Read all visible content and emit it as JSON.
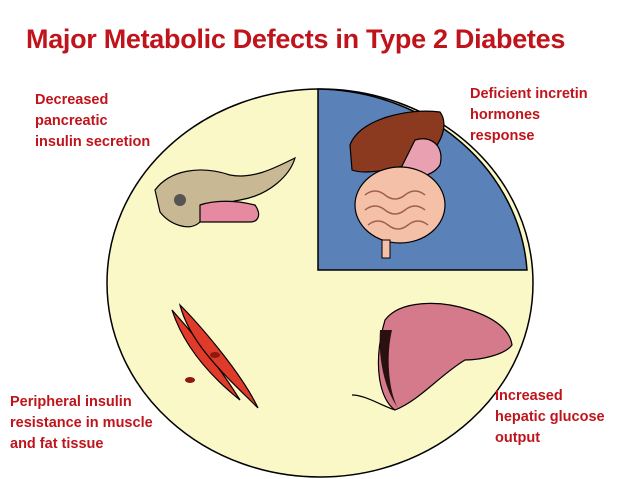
{
  "title": "Major Metabolic Defects in Type 2 Diabetes",
  "labels": [
    {
      "lines": [
        "Decreased",
        "pancreatic",
        "insulin secretion"
      ]
    },
    {
      "lines": [
        "Deficient incretin",
        "hormones",
        "response"
      ]
    },
    {
      "lines": [
        "Peripheral insulin",
        "resistance in muscle",
        "and fat tissue"
      ]
    },
    {
      "lines": [
        "Increased",
        "hepatic glucose",
        "output"
      ]
    }
  ]
}
